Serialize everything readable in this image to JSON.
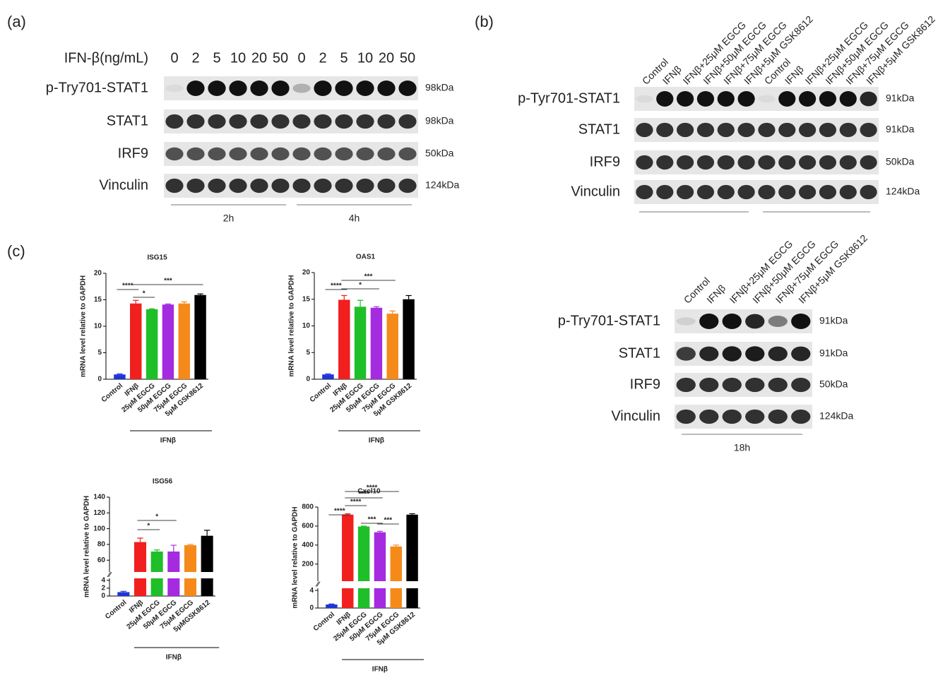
{
  "panel_a": {
    "label": "(a)",
    "treatment": "IFN-β(ng/mL)",
    "lanes": [
      0,
      2,
      5,
      10,
      20,
      50,
      0,
      2,
      5,
      10,
      20,
      50
    ],
    "rows": [
      {
        "name": "p-Try701-STAT1",
        "size": "98kDa"
      },
      {
        "name": "STAT1",
        "size": "98kDa"
      },
      {
        "name": "IRF9",
        "size": "50kDa"
      },
      {
        "name": "Vinculin",
        "size": "124kDa"
      }
    ],
    "groups": [
      "2h",
      "4h"
    ]
  },
  "panel_b": {
    "label": "(b)",
    "blots": [
      {
        "lanes": [
          "Control",
          "IFNβ",
          "IFNβ+25μM EGCG",
          "IFNβ+50μM EGCG",
          "IFNβ+75μM EGCG",
          "IFNβ+5μM GSK8612",
          "Control",
          "IFNβ",
          "IFNβ+25μM EGCG",
          "IFNβ+50μM EGCG",
          "IFNβ+75μM EGCG",
          "IFNβ+5μM GSK8612"
        ],
        "rows": [
          {
            "name": "p-Tyr701-STAT1",
            "size": "91kDa"
          },
          {
            "name": "STAT1",
            "size": "91kDa"
          },
          {
            "name": "IRF9",
            "size": "50kDa"
          },
          {
            "name": "Vinculin",
            "size": "124kDa"
          }
        ]
      },
      {
        "lanes": [
          "Control",
          "IFNβ",
          "IFNβ+25μM EGCG",
          "IFNβ+50μM EGCG",
          "IFNβ+75μM EGCG",
          "IFNβ+5μM GSK8612"
        ],
        "rows": [
          {
            "name": "p-Try701-STAT1",
            "size": "91kDa"
          },
          {
            "name": "STAT1",
            "size": "91kDa"
          },
          {
            "name": "IRF9",
            "size": "50kDa"
          },
          {
            "name": "Vinculin",
            "size": "124kDa"
          }
        ],
        "groups": [
          "18h"
        ]
      }
    ]
  },
  "panel_c": {
    "label": "(c)"
  },
  "chart_data": [
    {
      "type": "bar",
      "title": "ISG15",
      "ylabel": "mRNA level relative to GAPDH",
      "group_label": "IFNβ",
      "categories": [
        "Control",
        "IFNβ",
        "25μM EGCG",
        "50μM EGCG",
        "75μM EGCG",
        "5μM GSK8612"
      ],
      "values": [
        0.9,
        14.3,
        13.2,
        14.1,
        14.3,
        15.9
      ],
      "errors": [
        0.1,
        0.6,
        0.1,
        0.1,
        0.3,
        0.2
      ],
      "colors": [
        "#1f35d6",
        "#f21f1f",
        "#1fbf2a",
        "#a42be0",
        "#f58a1a",
        "#000000"
      ],
      "ylim": [
        0,
        20
      ],
      "yticks": [
        0,
        5,
        10,
        15,
        20
      ],
      "annotations": [
        "****",
        "*",
        "***"
      ]
    },
    {
      "type": "bar",
      "title": "OAS1",
      "ylabel": "mRNA level relative to GAPDH",
      "group_label": "IFNβ",
      "categories": [
        "Control",
        "IFNβ",
        "25μM EGCG",
        "50μM EGCG",
        "75μM EGCG",
        "5μM GSK8612"
      ],
      "values": [
        0.9,
        14.9,
        13.6,
        13.4,
        12.3,
        15.0
      ],
      "errors": [
        0.1,
        0.8,
        1.2,
        0.2,
        0.5,
        0.7
      ],
      "colors": [
        "#1f35d6",
        "#f21f1f",
        "#1fbf2a",
        "#a42be0",
        "#f58a1a",
        "#000000"
      ],
      "ylim": [
        0,
        20
      ],
      "yticks": [
        0,
        5,
        10,
        15,
        20
      ],
      "annotations": [
        "****",
        "*",
        "***"
      ]
    },
    {
      "type": "bar",
      "title": "ISG56",
      "ylabel": "mRNA level relative to GAPDH",
      "group_label": "IFNβ",
      "categories": [
        "Control",
        "IFNβ",
        "25μM EGCG",
        "50μM EGCG",
        "75μM EGCG",
        "5μMGSK8612"
      ],
      "values": [
        1.0,
        83,
        71,
        71,
        79,
        91
      ],
      "errors": [
        0.2,
        5,
        2,
        8,
        1,
        7
      ],
      "colors": [
        "#1f35d6",
        "#f21f1f",
        "#1fbf2a",
        "#a42be0",
        "#f58a1a",
        "#000000"
      ],
      "ylim": [
        0,
        140
      ],
      "axis_break": [
        4.5,
        45
      ],
      "yticks": [
        0,
        2,
        4,
        60,
        80,
        100,
        120,
        140
      ],
      "annotations": [
        "*",
        "*"
      ]
    },
    {
      "type": "bar",
      "title": "Cxcl10",
      "ylabel": "mRNA level relative to GAPDH",
      "group_label": "IFNβ",
      "categories": [
        "Control",
        "IFNβ",
        "25μM EGCG",
        "50μM EGCG",
        "75μM EGCG",
        "5μM GSK8612"
      ],
      "values": [
        0.8,
        720,
        595,
        535,
        385,
        720
      ],
      "errors": [
        0.1,
        10,
        5,
        10,
        15,
        10
      ],
      "colors": [
        "#1f35d6",
        "#f21f1f",
        "#1fbf2a",
        "#a42be0",
        "#f58a1a",
        "#000000"
      ],
      "ylim": [
        0,
        800
      ],
      "axis_break": [
        4.5,
        20
      ],
      "yticks": [
        0,
        4,
        200,
        400,
        600,
        800
      ],
      "annotations": [
        "****",
        "****",
        "****",
        "****",
        "***",
        "***"
      ]
    }
  ]
}
